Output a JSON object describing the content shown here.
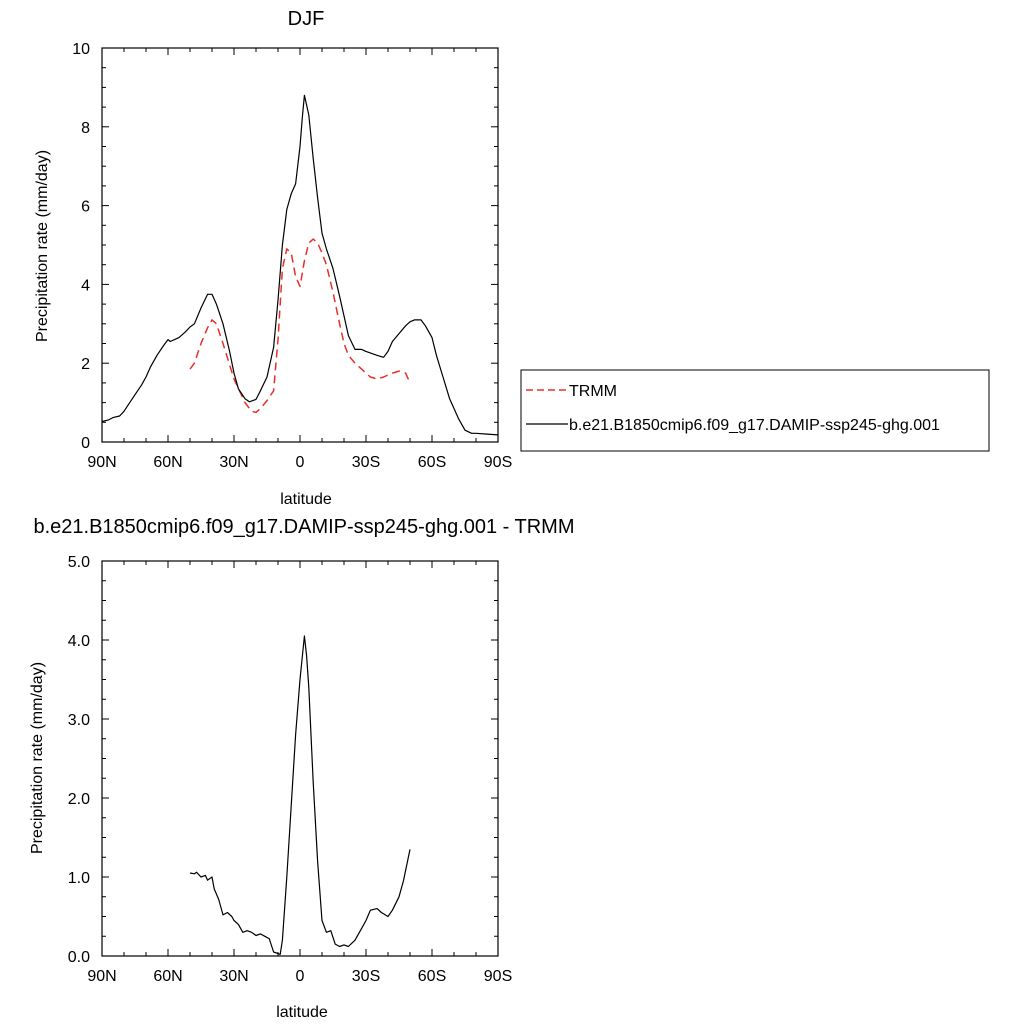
{
  "chart_data": [
    {
      "type": "line",
      "title": "DJF",
      "xlabel": "latitude",
      "ylabel": "Precipitation rate (mm/day)",
      "xlim": [
        90,
        -90
      ],
      "ylim": [
        0,
        10
      ],
      "x_ticks": [
        90,
        60,
        30,
        0,
        -30,
        -60,
        -90
      ],
      "x_tick_labels": [
        "90N",
        "60N",
        "30N",
        "0",
        "30S",
        "60S",
        "90S"
      ],
      "y_ticks": [
        0,
        2,
        4,
        6,
        8,
        10
      ],
      "y_tick_labels": [
        "0",
        "2",
        "4",
        "6",
        "8",
        "10"
      ],
      "grid": false,
      "legend_position": "right",
      "series": [
        {
          "name": "TRMM",
          "color": "#e8302a",
          "dash": true,
          "x": [
            50,
            48,
            45,
            42,
            40,
            38,
            35,
            30,
            25,
            22,
            20,
            18,
            15,
            12,
            10,
            8,
            6,
            4,
            2,
            0,
            -2,
            -4,
            -6,
            -8,
            -10,
            -12,
            -15,
            -18,
            -20,
            -22,
            -25,
            -28,
            -30,
            -32,
            -35,
            -38,
            -40,
            -42,
            -45,
            -48,
            -50
          ],
          "y": [
            1.85,
            2.0,
            2.5,
            2.9,
            3.1,
            3.0,
            2.5,
            1.6,
            1.0,
            0.78,
            0.75,
            0.85,
            1.05,
            1.3,
            2.6,
            4.4,
            4.9,
            4.8,
            4.2,
            3.95,
            4.6,
            5.05,
            5.15,
            5.05,
            4.8,
            4.5,
            3.8,
            3.0,
            2.5,
            2.2,
            2.0,
            1.85,
            1.75,
            1.65,
            1.6,
            1.65,
            1.7,
            1.75,
            1.8,
            1.75,
            1.5
          ]
        },
        {
          "name": "b.e21.B1850cmip6.f09_g17.DAMIP-ssp245-ghg.001",
          "color": "#000000",
          "dash": false,
          "x": [
            90,
            87,
            85,
            82,
            80,
            78,
            75,
            72,
            70,
            68,
            65,
            62,
            60,
            59,
            57,
            55,
            52,
            50,
            48,
            45,
            42,
            40,
            38,
            35,
            32,
            30,
            28,
            25,
            23,
            20,
            18,
            15,
            12,
            10,
            8,
            6,
            4,
            2,
            0,
            -1,
            -2,
            -4,
            -6,
            -8,
            -10,
            -12,
            -15,
            -18,
            -20,
            -22,
            -25,
            -28,
            -30,
            -35,
            -38,
            -40,
            -42,
            -45,
            -48,
            -50,
            -52,
            -55,
            -57,
            -60,
            -62,
            -65,
            -68,
            -70,
            -72,
            -75,
            -78,
            -80,
            -85,
            -90
          ],
          "y": [
            0.52,
            0.56,
            0.62,
            0.66,
            0.78,
            0.95,
            1.2,
            1.45,
            1.65,
            1.9,
            2.2,
            2.45,
            2.6,
            2.55,
            2.6,
            2.65,
            2.8,
            2.92,
            3.0,
            3.4,
            3.75,
            3.75,
            3.5,
            3.0,
            2.3,
            1.75,
            1.35,
            1.1,
            1.02,
            1.08,
            1.3,
            1.65,
            2.4,
            3.6,
            5.0,
            5.9,
            6.3,
            6.55,
            7.5,
            8.2,
            8.8,
            8.3,
            7.2,
            6.2,
            5.3,
            4.9,
            4.4,
            3.7,
            3.2,
            2.7,
            2.35,
            2.35,
            2.3,
            2.2,
            2.15,
            2.3,
            2.55,
            2.75,
            2.95,
            3.05,
            3.1,
            3.1,
            2.95,
            2.65,
            2.2,
            1.65,
            1.1,
            0.85,
            0.6,
            0.3,
            0.22,
            0.22,
            0.2,
            0.18
          ]
        }
      ]
    },
    {
      "type": "line",
      "title": "b.e21.B1850cmip6.f09_g17.DAMIP-ssp245-ghg.001 - TRMM",
      "xlabel": "latitude",
      "ylabel": "Precipitation rate (mm/day)",
      "xlim": [
        90,
        -90
      ],
      "ylim": [
        0,
        5
      ],
      "x_ticks": [
        90,
        60,
        30,
        0,
        -30,
        -60,
        -90
      ],
      "x_tick_labels": [
        "90N",
        "60N",
        "30N",
        "0",
        "30S",
        "60S",
        "90S"
      ],
      "y_ticks": [
        0,
        1,
        2,
        3,
        4,
        5
      ],
      "y_tick_labels": [
        "0.0",
        "1.0",
        "2.0",
        "3.0",
        "4.0",
        "5.0"
      ],
      "grid": false,
      "series": [
        {
          "color": "#000000",
          "dash": false,
          "x": [
            50,
            48,
            47,
            45,
            43,
            42,
            40,
            39,
            37,
            35,
            33,
            31,
            30,
            28,
            26,
            24,
            22,
            20,
            18,
            16,
            14,
            12,
            10,
            9,
            8,
            6,
            4,
            2,
            0,
            -2,
            -3,
            -4,
            -6,
            -8,
            -10,
            -12,
            -14,
            -16,
            -18,
            -20,
            -22,
            -25,
            -28,
            -30,
            -32,
            -35,
            -37,
            -40,
            -42,
            -45,
            -47,
            -50
          ],
          "y": [
            1.05,
            1.04,
            1.06,
            1.0,
            1.02,
            0.96,
            1.0,
            0.85,
            0.72,
            0.52,
            0.55,
            0.5,
            0.45,
            0.4,
            0.3,
            0.32,
            0.3,
            0.26,
            0.28,
            0.25,
            0.22,
            0.05,
            0.03,
            0.02,
            0.2,
            1.0,
            1.9,
            2.8,
            3.5,
            4.05,
            3.8,
            3.4,
            2.2,
            1.2,
            0.45,
            0.3,
            0.32,
            0.15,
            0.12,
            0.14,
            0.12,
            0.2,
            0.35,
            0.45,
            0.58,
            0.6,
            0.55,
            0.5,
            0.58,
            0.75,
            0.95,
            1.35
          ]
        }
      ]
    }
  ]
}
